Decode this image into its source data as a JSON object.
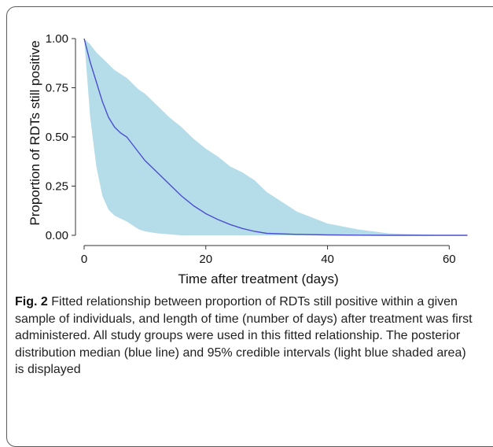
{
  "chart_data": {
    "type": "area",
    "xlabel": "Time after treatment (days)",
    "ylabel": "Proportion of RDTs still positive",
    "xlim": [
      0,
      65
    ],
    "ylim": [
      0,
      1.0
    ],
    "xticks": [
      0,
      20,
      40,
      60
    ],
    "xtick_labels": [
      "0",
      "20",
      "40",
      "60"
    ],
    "yticks": [
      0,
      0.25,
      0.5,
      0.75,
      1.0
    ],
    "ytick_labels": [
      "0.00",
      "0.25",
      "0.50",
      "0.75",
      "1.00"
    ],
    "grid": false,
    "series": [
      {
        "style": "line",
        "color": "#4b4fcf",
        "x": [
          0,
          1,
          2,
          3,
          4,
          5,
          6,
          7,
          8,
          9,
          10,
          12,
          14,
          16,
          18,
          20,
          22,
          24,
          26,
          28,
          30,
          35,
          40,
          45,
          50,
          55,
          60,
          63
        ],
        "y": [
          1.0,
          0.88,
          0.78,
          0.68,
          0.6,
          0.55,
          0.52,
          0.5,
          0.46,
          0.42,
          0.38,
          0.32,
          0.26,
          0.2,
          0.15,
          0.11,
          0.08,
          0.055,
          0.035,
          0.02,
          0.01,
          0.005,
          0.002,
          0.001,
          0.0,
          0.0,
          0.0,
          0.0
        ]
      },
      {
        "style": "band",
        "color": "#b5dde9",
        "x": [
          0,
          1,
          2,
          3,
          4,
          5,
          6,
          7,
          8,
          9,
          10,
          12,
          14,
          16,
          18,
          20,
          22,
          24,
          26,
          28,
          30,
          35,
          40,
          45,
          50,
          55,
          60,
          63
        ],
        "lower": [
          1.0,
          0.6,
          0.35,
          0.2,
          0.13,
          0.1,
          0.085,
          0.07,
          0.05,
          0.03,
          0.02,
          0.01,
          0.005,
          0.0,
          0.0,
          0.0,
          0.0,
          0.0,
          0.0,
          0.0,
          0.0,
          0.0,
          0.0,
          0.0,
          0.0,
          0.0,
          0.0,
          0.0
        ],
        "upper": [
          1.0,
          0.97,
          0.93,
          0.9,
          0.87,
          0.84,
          0.82,
          0.8,
          0.77,
          0.74,
          0.72,
          0.66,
          0.6,
          0.55,
          0.49,
          0.44,
          0.4,
          0.35,
          0.32,
          0.28,
          0.22,
          0.12,
          0.06,
          0.03,
          0.01,
          0.005,
          0.0,
          0.0
        ]
      }
    ]
  },
  "caption": {
    "label": "Fig. 2",
    "text": "Fitted relationship between proportion of RDTs still positive within a given sample of individuals, and length of time (number of days) after treatment was first administered. All study groups were used in this fitted relationship. The posterior distribution median (blue line) and 95% credible intervals (light blue shaded area) is displayed"
  }
}
